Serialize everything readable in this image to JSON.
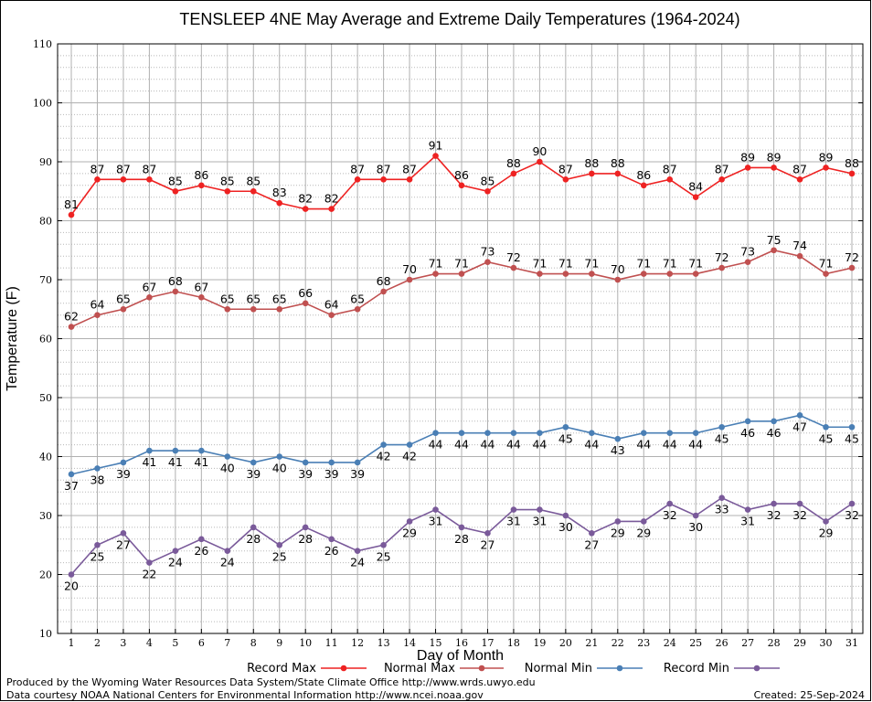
{
  "chart_data": {
    "type": "line",
    "title": "TENSLEEP 4NE May Average and Extreme Daily Temperatures (1964-2024)",
    "xlabel": "Day of Month",
    "ylabel": "Temperature (F)",
    "ylim": [
      10,
      110
    ],
    "yticks": [
      10,
      20,
      30,
      40,
      50,
      60,
      70,
      80,
      90,
      100,
      110
    ],
    "x": [
      1,
      2,
      3,
      4,
      5,
      6,
      7,
      8,
      9,
      10,
      11,
      12,
      13,
      14,
      15,
      16,
      17,
      18,
      19,
      20,
      21,
      22,
      23,
      24,
      25,
      26,
      27,
      28,
      29,
      30,
      31
    ],
    "grid": true,
    "legend_position": "bottom",
    "series": [
      {
        "name": "Record Max",
        "color": "#ee2222",
        "label_side": "above",
        "values": [
          81,
          87,
          87,
          87,
          85,
          86,
          85,
          85,
          83,
          82,
          82,
          87,
          87,
          87,
          91,
          86,
          85,
          88,
          90,
          87,
          88,
          88,
          86,
          87,
          84,
          87,
          89,
          89,
          87,
          89,
          88
        ]
      },
      {
        "name": "Normal Max",
        "color": "#c05050",
        "label_side": "above",
        "values": [
          62,
          64,
          65,
          67,
          68,
          67,
          65,
          65,
          65,
          66,
          64,
          65,
          68,
          70,
          71,
          71,
          73,
          72,
          71,
          71,
          71,
          70,
          71,
          71,
          71,
          72,
          73,
          75,
          74,
          71,
          72
        ]
      },
      {
        "name": "Normal Min",
        "color": "#4a7fb5",
        "label_side": "below",
        "values": [
          37,
          38,
          39,
          41,
          41,
          41,
          40,
          39,
          40,
          39,
          39,
          39,
          42,
          42,
          44,
          44,
          44,
          44,
          44,
          45,
          44,
          43,
          44,
          44,
          44,
          45,
          46,
          46,
          47,
          45,
          45
        ]
      },
      {
        "name": "Record Min",
        "color": "#7a5a9a",
        "label_side": "below",
        "values": [
          20,
          25,
          27,
          22,
          24,
          26,
          24,
          28,
          25,
          28,
          26,
          24,
          25,
          29,
          31,
          28,
          27,
          31,
          31,
          30,
          27,
          29,
          29,
          32,
          30,
          33,
          31,
          32,
          32,
          29,
          32
        ]
      }
    ]
  },
  "footer": {
    "left_line1": "Produced by the Wyoming Water Resources Data System/State Climate Office http://www.wrds.uwyo.edu",
    "left_line2": "Data courtesy NOAA National Centers for Environmental Information http://www.ncei.noaa.gov",
    "created": "Created:  25-Sep-2024"
  }
}
